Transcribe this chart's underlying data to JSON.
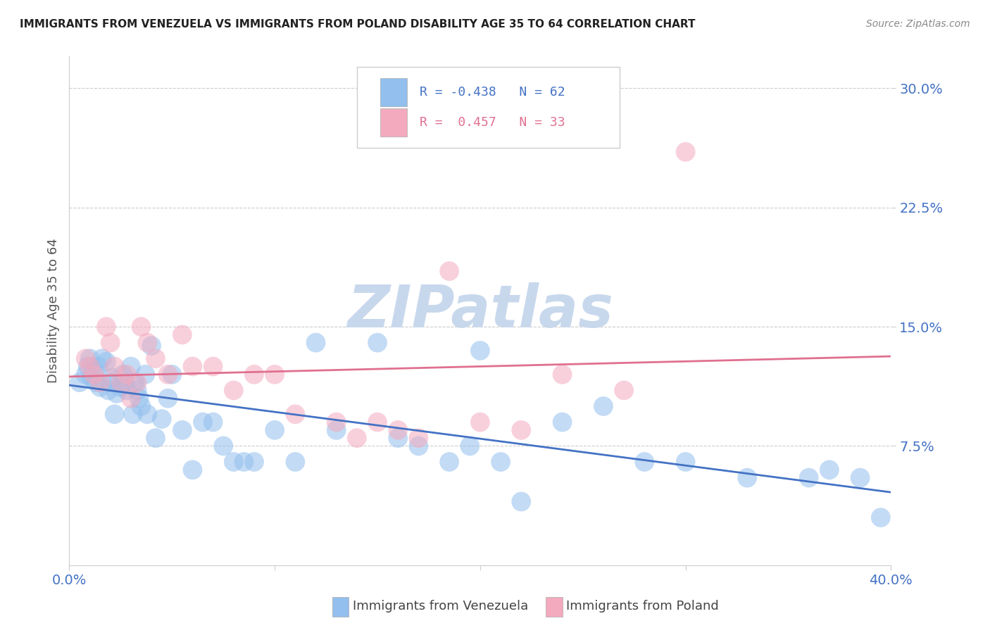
{
  "title": "IMMIGRANTS FROM VENEZUELA VS IMMIGRANTS FROM POLAND DISABILITY AGE 35 TO 64 CORRELATION CHART",
  "source": "Source: ZipAtlas.com",
  "ylabel": "Disability Age 35 to 64",
  "xlim": [
    0.0,
    0.4
  ],
  "ylim": [
    0.0,
    0.32
  ],
  "yticks": [
    0.075,
    0.15,
    0.225,
    0.3
  ],
  "ytick_labels": [
    "7.5%",
    "15.0%",
    "22.5%",
    "30.0%"
  ],
  "xticks": [
    0.0,
    0.1,
    0.2,
    0.3,
    0.4
  ],
  "xtick_labels": [
    "0.0%",
    "",
    "",
    "",
    "40.0%"
  ],
  "blue_R": -0.438,
  "blue_N": 62,
  "pink_R": 0.457,
  "pink_N": 33,
  "blue_color": "#92BFED",
  "pink_color": "#F4AABE",
  "blue_line_color": "#4472C4",
  "pink_line_color": "#E07090",
  "watermark": "ZIPatlas",
  "watermark_color": "#C8D8EC",
  "legend_blue_text_R": "R = -0.438",
  "legend_blue_text_N": "N = 62",
  "legend_pink_text_R": "R =  0.457",
  "legend_pink_text_N": "N = 33",
  "blue_scatter_x": [
    0.005,
    0.008,
    0.009,
    0.01,
    0.011,
    0.012,
    0.013,
    0.014,
    0.015,
    0.016,
    0.018,
    0.019,
    0.02,
    0.021,
    0.022,
    0.023,
    0.025,
    0.026,
    0.027,
    0.028,
    0.03,
    0.031,
    0.032,
    0.033,
    0.034,
    0.035,
    0.037,
    0.038,
    0.04,
    0.042,
    0.045,
    0.048,
    0.05,
    0.055,
    0.06,
    0.065,
    0.07,
    0.075,
    0.08,
    0.085,
    0.09,
    0.1,
    0.11,
    0.12,
    0.13,
    0.15,
    0.16,
    0.17,
    0.185,
    0.195,
    0.2,
    0.21,
    0.22,
    0.24,
    0.26,
    0.28,
    0.3,
    0.33,
    0.36,
    0.37,
    0.385,
    0.395
  ],
  "blue_scatter_y": [
    0.115,
    0.12,
    0.125,
    0.13,
    0.118,
    0.122,
    0.115,
    0.125,
    0.112,
    0.13,
    0.128,
    0.11,
    0.115,
    0.118,
    0.095,
    0.108,
    0.112,
    0.12,
    0.115,
    0.11,
    0.125,
    0.095,
    0.115,
    0.11,
    0.105,
    0.1,
    0.12,
    0.095,
    0.138,
    0.08,
    0.092,
    0.105,
    0.12,
    0.085,
    0.06,
    0.09,
    0.09,
    0.075,
    0.065,
    0.065,
    0.065,
    0.085,
    0.065,
    0.14,
    0.085,
    0.14,
    0.08,
    0.075,
    0.065,
    0.075,
    0.135,
    0.065,
    0.04,
    0.09,
    0.1,
    0.065,
    0.065,
    0.055,
    0.055,
    0.06,
    0.055,
    0.03
  ],
  "pink_scatter_x": [
    0.008,
    0.01,
    0.012,
    0.015,
    0.018,
    0.02,
    0.022,
    0.025,
    0.028,
    0.03,
    0.033,
    0.035,
    0.038,
    0.042,
    0.048,
    0.055,
    0.06,
    0.07,
    0.08,
    0.09,
    0.1,
    0.11,
    0.13,
    0.14,
    0.15,
    0.16,
    0.17,
    0.185,
    0.2,
    0.22,
    0.24,
    0.27,
    0.3
  ],
  "pink_scatter_y": [
    0.13,
    0.125,
    0.12,
    0.115,
    0.15,
    0.14,
    0.125,
    0.115,
    0.12,
    0.105,
    0.115,
    0.15,
    0.14,
    0.13,
    0.12,
    0.145,
    0.125,
    0.125,
    0.11,
    0.12,
    0.12,
    0.095,
    0.09,
    0.08,
    0.09,
    0.085,
    0.08,
    0.185,
    0.09,
    0.085,
    0.12,
    0.11,
    0.26
  ]
}
